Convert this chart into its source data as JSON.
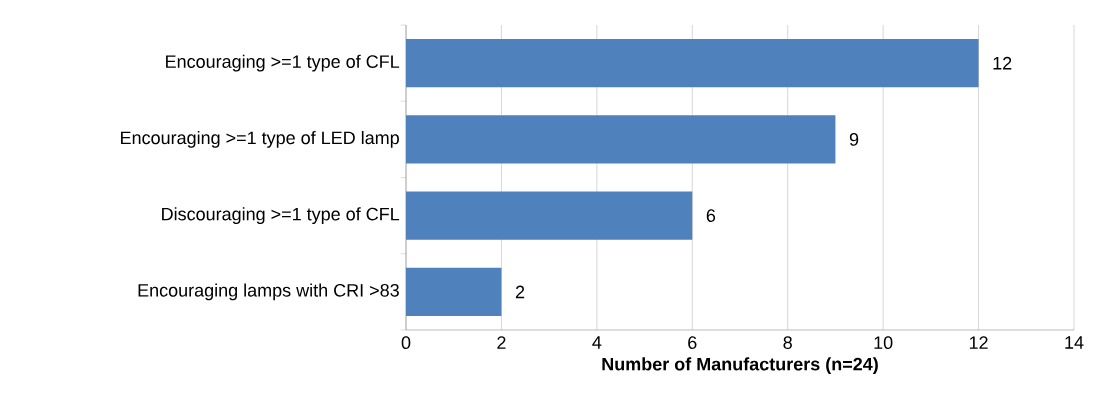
{
  "chart_data": {
    "type": "bar",
    "orientation": "horizontal",
    "xlabel": "Number of Manufacturers (n=24)",
    "categories": [
      "Encouraging >=1 type of CFL",
      "Encouraging >=1 type of LED lamp",
      "Discouraging >=1 type of CFL",
      "Encouraging lamps with CRI >83"
    ],
    "values": [
      12,
      9,
      6,
      2
    ],
    "color": "#4f81bd",
    "xlim": [
      0,
      14
    ],
    "xticks": [
      0,
      2,
      4,
      6,
      8,
      10,
      12,
      14
    ],
    "grid": "x",
    "data_labels": true
  }
}
